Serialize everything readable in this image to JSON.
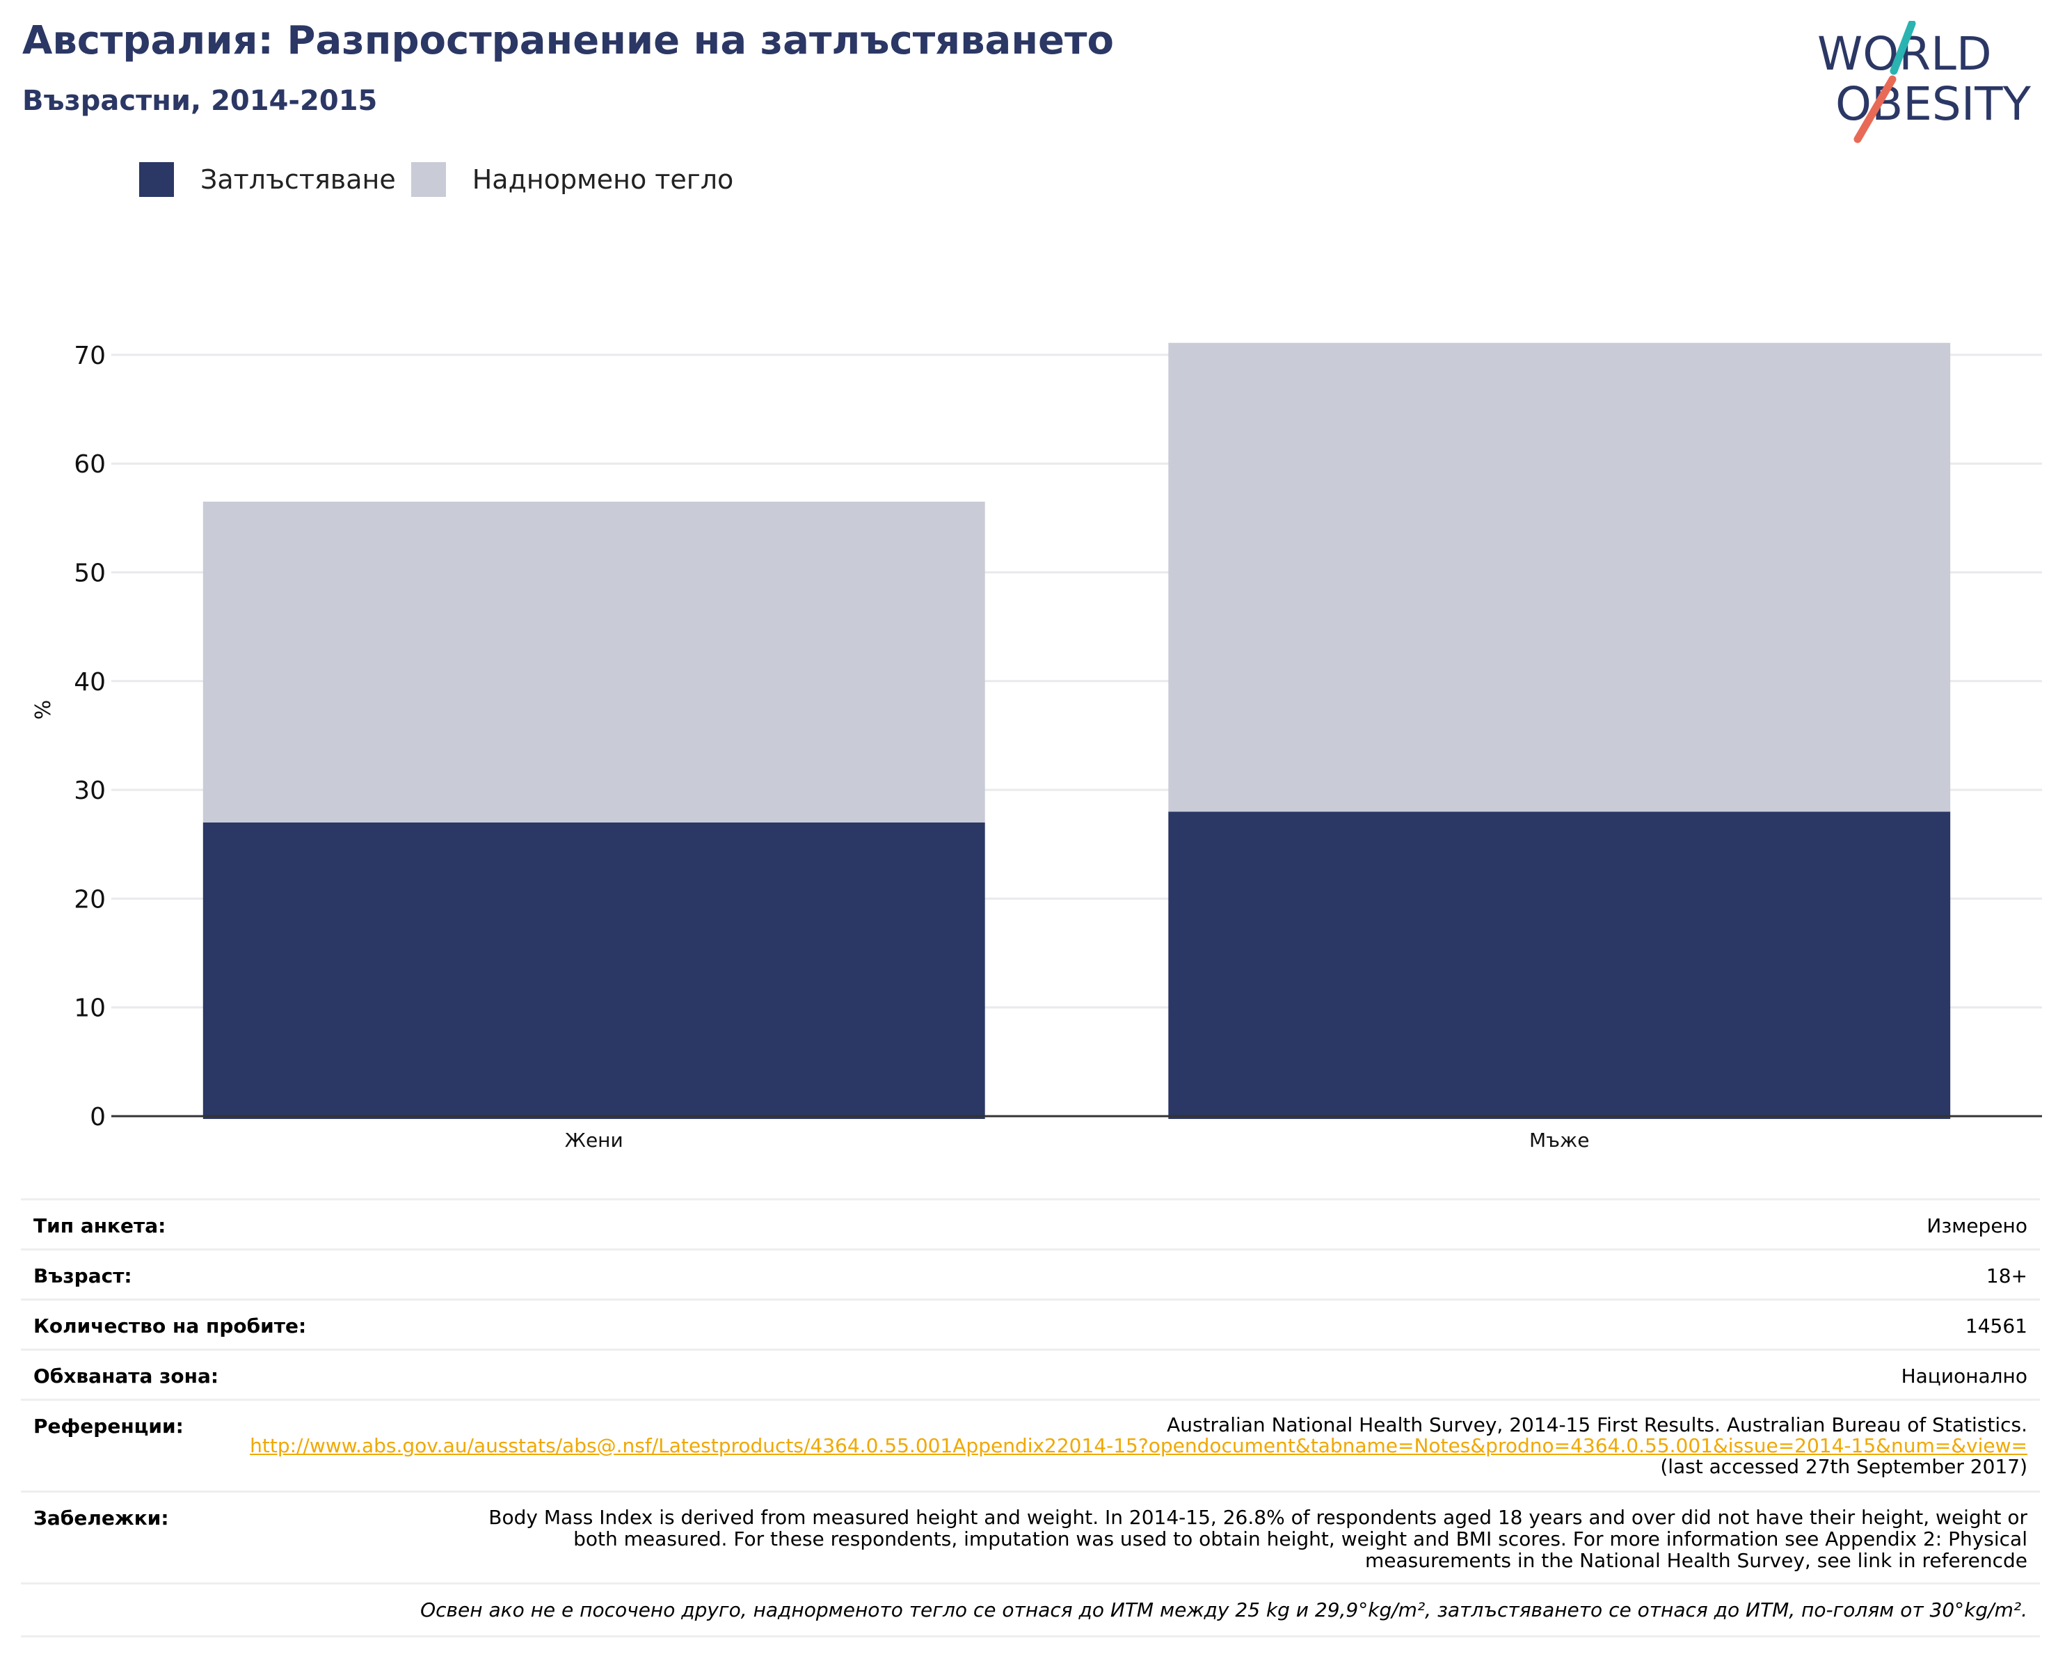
{
  "header": {
    "title": "Австралия: Разпространение на затлъстяването",
    "subtitle": "Възрастни, 2014-2015"
  },
  "logo": {
    "line1": "WORLD",
    "line2": "OBESITY",
    "colors": {
      "text": "#2b3764",
      "slash_top": "#2ab3b1",
      "slash_bottom": "#e86a56"
    }
  },
  "legend": [
    {
      "label": "Затлъстяване",
      "color": "#2b3764"
    },
    {
      "label": "Наднормено тегло",
      "color": "#c9cbd7"
    }
  ],
  "chart_data": {
    "type": "bar",
    "stacked": true,
    "categories": [
      "Жени",
      "Мъже"
    ],
    "series": [
      {
        "name": "Затлъстяване",
        "color": "#2b3764",
        "values": [
          27.0,
          28.0
        ]
      },
      {
        "name": "Наднормено тегло",
        "color": "#c9cbd7",
        "values": [
          29.5,
          43.1
        ]
      }
    ],
    "ylabel": "%",
    "ylim": [
      0,
      73
    ],
    "yticks": [
      0,
      10,
      20,
      30,
      40,
      50,
      60,
      70
    ],
    "grid": true,
    "legend_position": "top-left"
  },
  "info": {
    "survey_type": {
      "label": "Тип анкета:",
      "value": "Измерено"
    },
    "age": {
      "label": "Възраст:",
      "value": "18+"
    },
    "sample_size": {
      "label": "Количество на пробите:",
      "value": "14561"
    },
    "coverage": {
      "label": "Обхваната зона:",
      "value": "Национално"
    },
    "references": {
      "label": "Референции:",
      "text": "Australian National Health Survey, 2014-15 First Results. Australian Bureau of Statistics.",
      "link": "http://www.abs.gov.au/ausstats/abs@.nsf/Latestproducts/4364.0.55.001Appendix22014-15?opendocument&tabname=Notes&prodno=4364.0.55.001&issue=2014-15&num=&view=",
      "accessed": "(last accessed 27th September 2017)"
    },
    "notes": {
      "label": "Забележки:",
      "text": "Body Mass Index is derived from measured height and weight. In 2014-15, 26.8% of respondents aged 18 years and over did not have their height, weight or both measured. For these respondents, imputation was used to obtain height, weight and BMI scores. For more information see Appendix 2: Physical measurements in the National Health Survey, see link in referencde"
    },
    "footnote": "Освен ако не е посочено друго, наднорменото тегло се отнася до ИТМ между 25 kg и 29,9°kg/m², затлъстяването се отнася до ИТМ, по-голям от 30°kg/m²."
  }
}
